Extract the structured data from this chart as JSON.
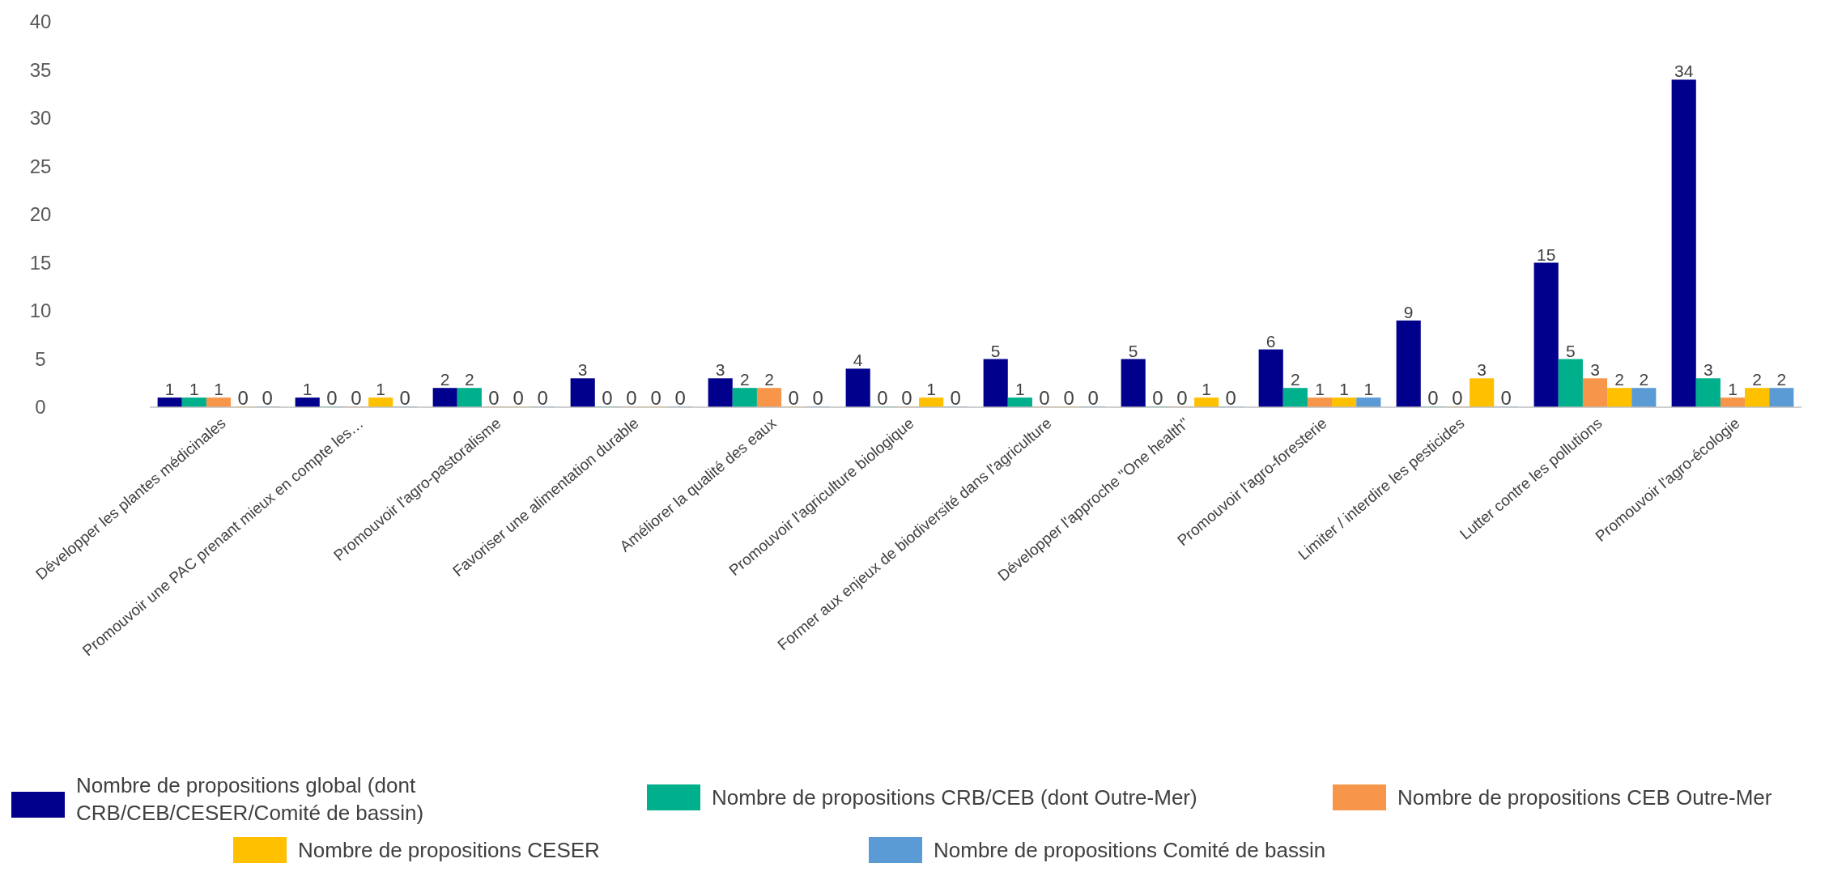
{
  "chart_data": {
    "type": "bar",
    "categories": [
      "Développer les plantes médicinales",
      "Promouvoir une PAC prenant mieux en compte les…",
      "Promouvoir l'agro-pastoralisme",
      "Favoriser une alimentation durable",
      "Améliorer la qualité des eaux",
      "Promouvoir l'agriculture biologique",
      "Former aux enjeux de biodiversité dans l'agriculture",
      "Développer l'approche \"One health\"",
      "Promouvoir l'agro-foresterie",
      "Limiter / interdire les pesticides",
      "Lutter contre les pollutions",
      "Promouvoir l'agro-écologie"
    ],
    "series": [
      {
        "name": "Nombre de propositions global (dont CRB/CEB/CESER/Comité de bassin)",
        "color": "#00008c",
        "values": [
          1,
          1,
          2,
          3,
          3,
          4,
          5,
          5,
          6,
          9,
          15,
          34
        ]
      },
      {
        "name": "Nombre de propositions CRB/CEB (dont Outre-Mer)",
        "color": "#00b08c",
        "values": [
          1,
          0,
          2,
          0,
          2,
          0,
          1,
          0,
          2,
          0,
          5,
          3
        ]
      },
      {
        "name": "Nombre de propositions CEB Outre-Mer",
        "color": "#f7964a",
        "values": [
          1,
          0,
          0,
          0,
          2,
          0,
          0,
          0,
          1,
          0,
          3,
          1
        ]
      },
      {
        "name": "Nombre de propositions CESER",
        "color": "#ffc000",
        "values": [
          0,
          1,
          0,
          0,
          0,
          1,
          0,
          1,
          1,
          3,
          2,
          2
        ]
      },
      {
        "name": "Nombre de propositions Comité de bassin",
        "color": "#5b9bd5",
        "values": [
          0,
          0,
          0,
          0,
          0,
          0,
          0,
          0,
          1,
          0,
          2,
          2
        ]
      }
    ],
    "ylim": [
      0,
      40
    ],
    "yticks": [
      0,
      5,
      10,
      15,
      20,
      25,
      30,
      35,
      40
    ],
    "grid": false,
    "data_labels": true,
    "legend": "bottom"
  }
}
